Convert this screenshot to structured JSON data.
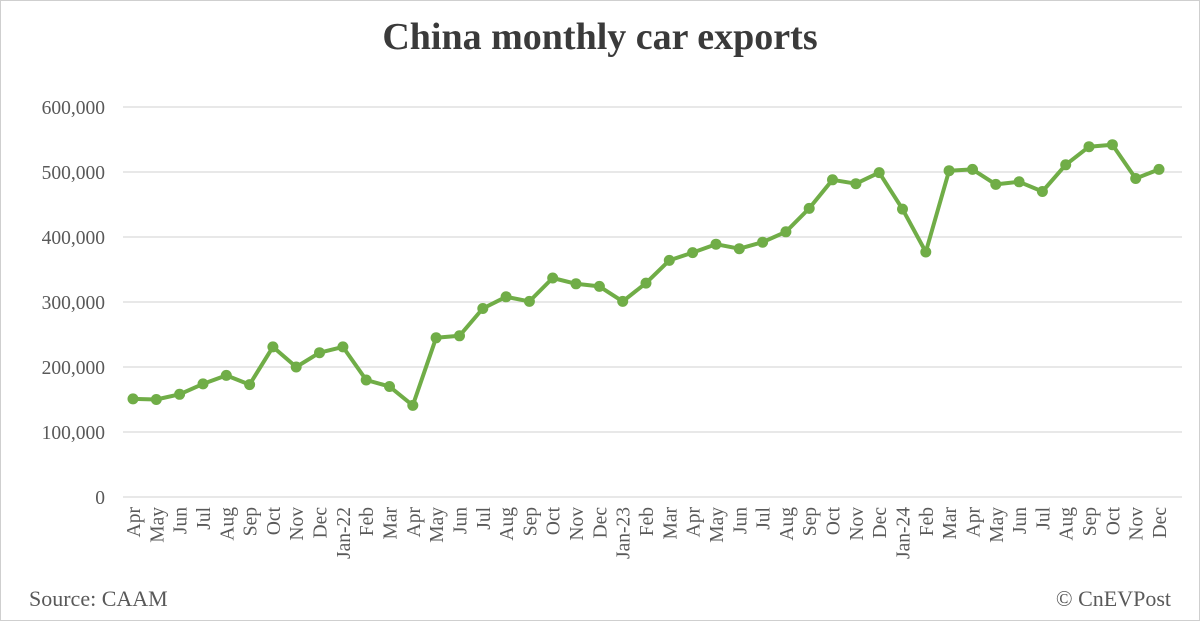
{
  "title": "China monthly car exports",
  "footer": {
    "source": "Source: CAAM",
    "watermark": "© CnEVPost"
  },
  "colors": {
    "line": "#70ad47",
    "marker": "#70ad47",
    "grid": "#d9d9d9",
    "axis_text": "#595959",
    "title_text": "#3a3a3a"
  },
  "chart_data": {
    "type": "line",
    "title": "China monthly car exports",
    "categories": [
      "Apr",
      "May",
      "Jun",
      "Jul",
      "Aug",
      "Sep",
      "Oct",
      "Nov",
      "Dec",
      "Jan-22",
      "Feb",
      "Mar",
      "Apr",
      "May",
      "Jun",
      "Jul",
      "Aug",
      "Sep",
      "Oct",
      "Nov",
      "Dec",
      "Jan-23",
      "Feb",
      "Mar",
      "Apr",
      "May",
      "Jun",
      "Jul",
      "Aug",
      "Sep",
      "Oct",
      "Nov",
      "Dec",
      "Jan-24",
      "Feb",
      "Mar",
      "Apr",
      "May",
      "Jun",
      "Jul",
      "Aug",
      "Sep",
      "Oct",
      "Nov",
      "Dec"
    ],
    "series": [
      {
        "name": "Monthly car exports",
        "values": [
          151000,
          150000,
          158000,
          174000,
          187000,
          173000,
          231000,
          200000,
          222000,
          231000,
          180000,
          170000,
          141000,
          245000,
          248000,
          290000,
          308000,
          301000,
          337000,
          328000,
          324000,
          301000,
          329000,
          364000,
          376000,
          389000,
          382000,
          392000,
          408000,
          444000,
          488000,
          482000,
          499000,
          443000,
          377000,
          502000,
          504000,
          481000,
          485000,
          470000,
          511000,
          539000,
          542000,
          490000,
          504000
        ]
      }
    ],
    "xlabel": "",
    "ylabel": "",
    "ylim": [
      0,
      600000
    ],
    "ytick_interval": 100000,
    "ytick_labels": [
      "0",
      "100,000",
      "200,000",
      "300,000",
      "400,000",
      "500,000",
      "600,000"
    ],
    "grid": "horizontal",
    "legend": "none",
    "marker": "circle"
  }
}
